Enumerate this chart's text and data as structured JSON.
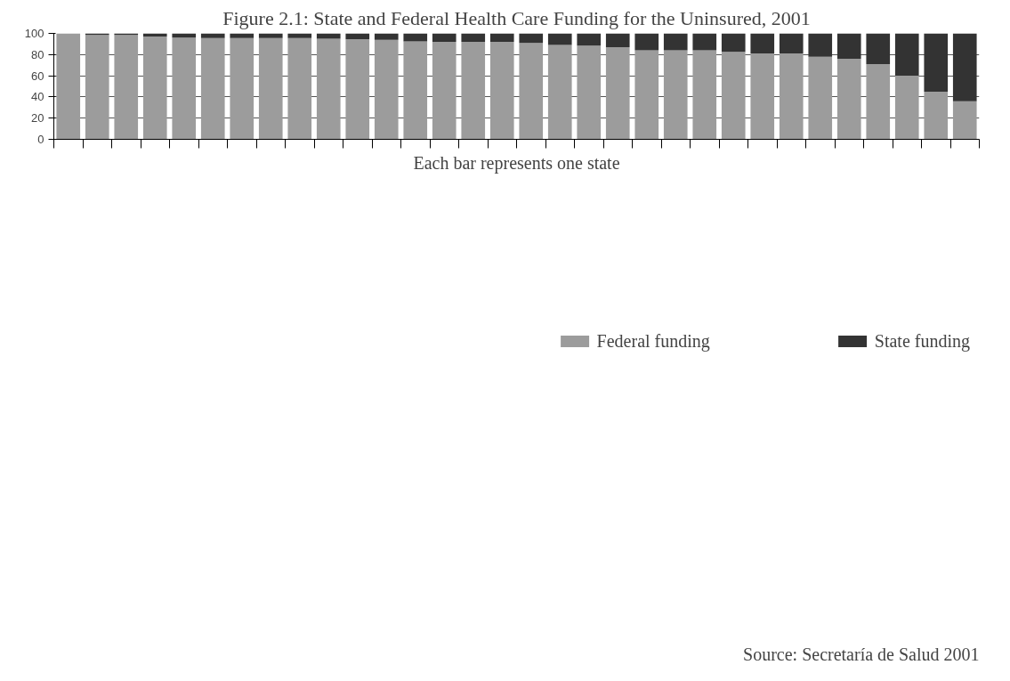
{
  "chart_data": {
    "type": "bar",
    "title": "Figure 2.1: State and Federal Health Care Funding for the Uninsured, 2001",
    "xlabel": "Each bar represents one state",
    "categories": [
      null,
      null,
      null,
      null,
      null,
      null,
      null,
      null,
      null,
      null,
      null,
      null,
      null,
      null,
      null,
      null,
      null,
      null,
      null,
      null,
      null,
      null,
      null,
      null,
      null,
      null,
      null,
      null,
      null,
      null,
      null,
      null
    ],
    "stacked": true,
    "series": [
      {
        "name": "Federal funding",
        "color": "#9c9c9c",
        "values": [
          100,
          98.5,
          98.5,
          97,
          96,
          95.5,
          95.5,
          95.5,
          95.5,
          95,
          94.5,
          94,
          92.5,
          92,
          92,
          92,
          91,
          89,
          88.5,
          87,
          84,
          84,
          84,
          82.5,
          81,
          81,
          78,
          76,
          71,
          60,
          45,
          36
        ]
      },
      {
        "name": "State funding",
        "color": "#333333",
        "values": [
          0,
          1.5,
          1.5,
          3,
          4,
          4.5,
          4.5,
          4.5,
          4.5,
          5,
          5.5,
          6,
          7.5,
          8,
          8,
          8,
          9,
          11,
          11.5,
          13,
          16,
          16,
          16,
          17.5,
          19,
          19,
          22,
          24,
          29,
          40,
          55,
          64
        ]
      }
    ],
    "ylim": [
      0,
      100
    ],
    "yticks": [
      0,
      20,
      40,
      60,
      80,
      100
    ],
    "grid": "y",
    "legend": "bottom",
    "tick_labels": "y",
    "annotations": [
      "Source: Secretaría de Salud 2001"
    ]
  }
}
